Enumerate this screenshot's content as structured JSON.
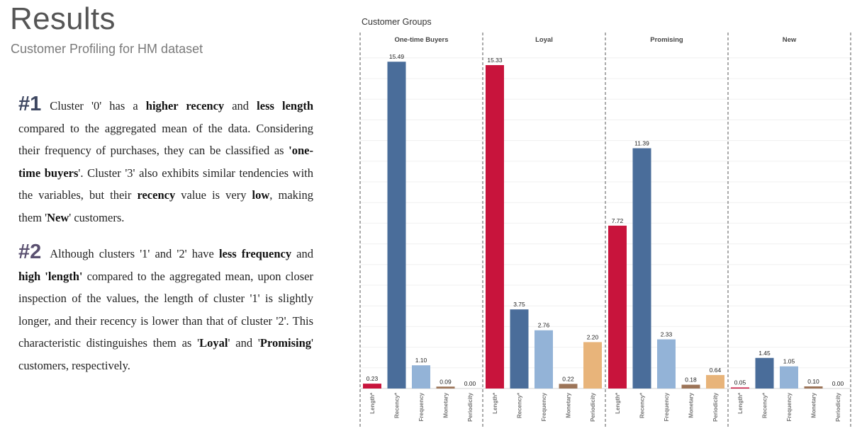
{
  "page": {
    "title": "Results",
    "subtitle": "Customer Profiling for HM dataset"
  },
  "insights": [
    {
      "number": "#1",
      "segments": [
        {
          "t": "Cluster '0' has a ",
          "b": false
        },
        {
          "t": "higher recency",
          "b": true
        },
        {
          "t": " and ",
          "b": false
        },
        {
          "t": "less length",
          "b": true
        },
        {
          "t": " compared to the aggregated mean of the data. Considering their frequency of purchases, they can be classified as ",
          "b": false
        },
        {
          "t": "'one-time buyers",
          "b": true
        },
        {
          "t": "'. Cluster '3' also exhibits similar tendencies with the variables, but their ",
          "b": false
        },
        {
          "t": "recency",
          "b": true
        },
        {
          "t": " value is very ",
          "b": false
        },
        {
          "t": "low",
          "b": true
        },
        {
          "t": ", making them '",
          "b": false
        },
        {
          "t": "New",
          "b": true
        },
        {
          "t": "' customers.",
          "b": false
        }
      ]
    },
    {
      "number": "#2",
      "segments": [
        {
          "t": "Although clusters '1' and '2' have ",
          "b": false
        },
        {
          "t": "less frequency",
          "b": true
        },
        {
          "t": " and ",
          "b": false
        },
        {
          "t": "high 'length'",
          "b": true
        },
        {
          "t": " compared to the aggregated mean, upon closer inspection of the values, the length of cluster '1' is slightly longer, and their recency is lower than that of cluster '2'. This characteristic distinguishes them as '",
          "b": false
        },
        {
          "t": "Loyal",
          "b": true
        },
        {
          "t": "' and '",
          "b": false
        },
        {
          "t": "Promising",
          "b": true
        },
        {
          "t": "' customers, respectively.",
          "b": false
        }
      ]
    }
  ],
  "chart_data": {
    "type": "bar",
    "title": "Customer Groups",
    "xlabel": "",
    "ylabel": "",
    "ylim": [
      0,
      15.8
    ],
    "grid": true,
    "metrics": [
      "Length*",
      "Recency*",
      "Frequency",
      "Monetary",
      "Periodicity"
    ],
    "metric_colors": [
      "#c8143c",
      "#4a6d9a",
      "#93b3d7",
      "#9c7458",
      "#e8b47a"
    ],
    "groups": [
      {
        "name": "One-time Buyers",
        "values": [
          0.23,
          15.49,
          1.1,
          0.09,
          0.0
        ]
      },
      {
        "name": "Loyal",
        "values": [
          15.33,
          3.75,
          2.76,
          0.22,
          2.2
        ]
      },
      {
        "name": "Promising",
        "values": [
          7.72,
          11.39,
          2.33,
          0.18,
          0.64
        ]
      },
      {
        "name": "New",
        "values": [
          0.05,
          1.45,
          1.05,
          0.1,
          0.0
        ]
      }
    ]
  }
}
